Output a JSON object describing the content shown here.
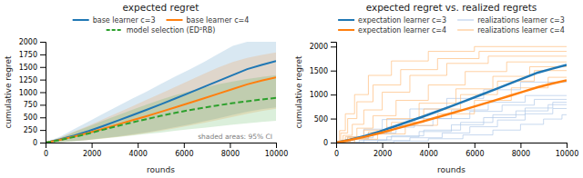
{
  "chart_data": [
    {
      "type": "line",
      "title": "expected regret",
      "x_label": "rounds",
      "y_label": "cumulative regret",
      "x": [
        0,
        625,
        1250,
        1875,
        2500,
        3125,
        3750,
        4375,
        5000,
        5625,
        6250,
        6875,
        7500,
        8125,
        8750,
        9375,
        10000
      ],
      "xlim": [
        0,
        10000
      ],
      "xticks": [
        0,
        2000,
        4000,
        6000,
        8000,
        10000
      ],
      "ylim": [
        0,
        2000
      ],
      "yticks": [
        0,
        250,
        500,
        750,
        1000,
        1250,
        1500,
        1750,
        2000
      ],
      "legend": "top",
      "annotation": "shaded areas: 95% CI",
      "series": [
        {
          "name": "base learner c=3",
          "color": "#1f77b4",
          "line_style": "solid",
          "values": [
            0,
            62,
            140,
            230,
            330,
            435,
            540,
            648,
            760,
            873,
            988,
            1105,
            1222,
            1340,
            1458,
            1540,
            1620
          ],
          "low": [
            0,
            10,
            28,
            55,
            88,
            122,
            162,
            204,
            252,
            305,
            362,
            422,
            484,
            548,
            612,
            660,
            700
          ],
          "high": [
            0,
            115,
            272,
            420,
            570,
            720,
            870,
            1010,
            1160,
            1310,
            1450,
            1600,
            1760,
            1920,
            2000,
            2000,
            2000
          ]
        },
        {
          "name": "base learner c=4",
          "color": "#ff7f0e",
          "line_style": "solid",
          "values": [
            0,
            55,
            120,
            195,
            276,
            358,
            440,
            524,
            610,
            698,
            788,
            878,
            970,
            1062,
            1155,
            1230,
            1295
          ],
          "low": [
            0,
            10,
            25,
            50,
            80,
            112,
            148,
            188,
            234,
            282,
            336,
            392,
            450,
            510,
            572,
            624,
            670
          ],
          "high": [
            0,
            98,
            220,
            340,
            465,
            592,
            718,
            845,
            975,
            1105,
            1235,
            1365,
            1490,
            1600,
            1680,
            1740,
            1790
          ]
        },
        {
          "name": "model selection (ED²RB)",
          "color": "#2ca02c",
          "line_style": "dashed",
          "values": [
            0,
            50,
            112,
            180,
            255,
            328,
            400,
            465,
            530,
            590,
            645,
            695,
            740,
            782,
            820,
            855,
            888
          ],
          "low": [
            0,
            10,
            28,
            52,
            80,
            108,
            140,
            170,
            200,
            232,
            264,
            295,
            325,
            355,
            382,
            408,
            432
          ],
          "high": [
            0,
            92,
            210,
            322,
            432,
            542,
            648,
            752,
            850,
            940,
            1020,
            1092,
            1156,
            1212,
            1260,
            1300,
            1336
          ]
        }
      ]
    },
    {
      "type": "line",
      "title": "expected regret vs. realized regrets",
      "x_label": "rounds",
      "y_label": "cumulative regret",
      "x": [
        0,
        625,
        1250,
        1875,
        2500,
        3125,
        3750,
        4375,
        5000,
        5625,
        6250,
        6875,
        7500,
        8125,
        8750,
        9375,
        10000
      ],
      "xlim": [
        0,
        10000
      ],
      "xticks": [
        0,
        2000,
        4000,
        6000,
        8000,
        10000
      ],
      "ylim": [
        0,
        2100
      ],
      "yticks": [
        0,
        500,
        1000,
        1500,
        2000
      ],
      "legend": "top",
      "series": [
        {
          "name": "expectation learner c=3",
          "color": "#1f77b4",
          "values": [
            0,
            62,
            140,
            230,
            330,
            435,
            540,
            648,
            760,
            873,
            988,
            1105,
            1222,
            1340,
            1458,
            1540,
            1620
          ]
        },
        {
          "name": "realizations learner c=3",
          "color": "#aec7e8",
          "x": [
            0,
            800,
            800,
            1600,
            1600,
            2600,
            2600,
            4200,
            4200,
            5800,
            5800,
            7200,
            7200,
            8600,
            8600,
            10000
          ],
          "values": [
            0,
            0,
            100,
            100,
            200,
            200,
            350,
            350,
            500,
            500,
            650,
            650,
            780,
            780,
            900,
            900
          ]
        },
        {
          "color": "#aec7e8",
          "x": [
            0,
            600,
            600,
            1400,
            1400,
            2200,
            2200,
            3400,
            3400,
            5000,
            5000,
            6600,
            6600,
            8200,
            8200,
            10000
          ],
          "values": [
            0,
            0,
            80,
            80,
            180,
            180,
            320,
            320,
            500,
            500,
            680,
            680,
            840,
            840,
            980,
            980
          ]
        },
        {
          "color": "#aec7e8",
          "x": [
            0,
            1200,
            1200,
            2400,
            2400,
            3800,
            3800,
            5400,
            5400,
            6800,
            6800,
            8200,
            8200,
            9400,
            9400,
            10000
          ],
          "values": [
            0,
            0,
            60,
            60,
            140,
            140,
            260,
            260,
            420,
            420,
            580,
            580,
            720,
            720,
            840,
            840
          ]
        },
        {
          "color": "#aec7e8",
          "x": [
            0,
            500,
            500,
            1200,
            1200,
            2000,
            2000,
            3200,
            3200,
            4800,
            4800,
            6400,
            6400,
            8000,
            8000,
            10000
          ],
          "values": [
            0,
            0,
            120,
            120,
            280,
            280,
            480,
            480,
            700,
            700,
            920,
            920,
            1100,
            1100,
            1260,
            1260
          ]
        },
        {
          "color": "#aec7e8",
          "x": [
            0,
            1000,
            1000,
            2200,
            2200,
            3600,
            3600,
            5000,
            5000,
            6400,
            6400,
            7800,
            7800,
            9200,
            9200,
            10000
          ],
          "values": [
            0,
            0,
            50,
            50,
            120,
            120,
            230,
            230,
            370,
            370,
            520,
            520,
            660,
            660,
            790,
            790
          ]
        },
        {
          "color": "#aec7e8",
          "x": [
            0,
            1800,
            1800,
            3200,
            3200,
            4600,
            4600,
            5800,
            5800,
            7000,
            7000,
            8200,
            8200,
            9400,
            9400,
            10000
          ],
          "values": [
            0,
            0,
            40,
            40,
            100,
            100,
            200,
            200,
            330,
            330,
            470,
            470,
            600,
            600,
            710,
            710
          ]
        },
        {
          "color": "#aec7e8",
          "x": [
            0,
            2500,
            2500,
            4000,
            4000,
            5500,
            5500,
            6800,
            6800,
            8000,
            8000,
            9000,
            9000,
            9800,
            9800,
            10000
          ],
          "values": [
            0,
            0,
            30,
            30,
            80,
            80,
            160,
            160,
            260,
            260,
            380,
            380,
            490,
            490,
            580,
            580
          ]
        },
        {
          "name": "expectation learner c=4",
          "color": "#ff7f0e",
          "values": [
            0,
            55,
            120,
            195,
            276,
            358,
            440,
            524,
            610,
            698,
            788,
            878,
            970,
            1062,
            1155,
            1230,
            1295
          ]
        },
        {
          "name": "realizations learner c=4",
          "color": "#ffbb78",
          "x": [
            0,
            300,
            300,
            700,
            700,
            1200,
            1200,
            2000,
            2000,
            3200,
            3200,
            4800,
            4800,
            6600,
            6600,
            10000
          ],
          "values": [
            0,
            0,
            150,
            150,
            380,
            380,
            680,
            680,
            1050,
            1050,
            1400,
            1400,
            1650,
            1650,
            1800,
            1800
          ]
        },
        {
          "color": "#ffbb78",
          "x": [
            0,
            200,
            200,
            500,
            500,
            900,
            900,
            1600,
            1600,
            2800,
            2800,
            4400,
            4400,
            6200,
            6200,
            10000
          ],
          "values": [
            0,
            0,
            200,
            200,
            500,
            500,
            850,
            850,
            1200,
            1200,
            1520,
            1520,
            1750,
            1750,
            1900,
            1900
          ]
        },
        {
          "color": "#ffbb78",
          "x": [
            0,
            400,
            400,
            900,
            900,
            1600,
            1600,
            2600,
            2600,
            4000,
            4000,
            5600,
            5600,
            7400,
            7400,
            10000
          ],
          "values": [
            0,
            0,
            120,
            120,
            300,
            300,
            560,
            560,
            880,
            880,
            1200,
            1200,
            1480,
            1480,
            1680,
            1680
          ]
        },
        {
          "color": "#ffbb78",
          "x": [
            0,
            600,
            600,
            1400,
            1400,
            2400,
            2400,
            3800,
            3800,
            5400,
            5400,
            7000,
            7000,
            8600,
            8600,
            10000
          ],
          "values": [
            0,
            0,
            90,
            90,
            220,
            220,
            420,
            420,
            700,
            700,
            1000,
            1000,
            1280,
            1280,
            1500,
            1500
          ]
        },
        {
          "color": "#ffbb78",
          "x": [
            0,
            150,
            150,
            400,
            400,
            800,
            800,
            1400,
            1400,
            2400,
            2400,
            4000,
            4000,
            6000,
            6000,
            10000
          ],
          "values": [
            0,
            0,
            250,
            250,
            600,
            600,
            1000,
            1000,
            1400,
            1400,
            1700,
            1700,
            1900,
            1900,
            2000,
            2000
          ]
        },
        {
          "color": "#ffbb78",
          "x": [
            0,
            500,
            500,
            1200,
            1200,
            2200,
            2200,
            3600,
            3600,
            5200,
            5200,
            6800,
            6800,
            8400,
            8400,
            10000
          ],
          "values": [
            0,
            0,
            100,
            100,
            260,
            260,
            500,
            500,
            820,
            820,
            1120,
            1120,
            1380,
            1380,
            1580,
            1580
          ]
        },
        {
          "color": "#ffbb78",
          "x": [
            0,
            800,
            800,
            1800,
            1800,
            3000,
            3000,
            4400,
            4400,
            6000,
            6000,
            7600,
            7600,
            9200,
            9200,
            10000
          ],
          "values": [
            0,
            0,
            70,
            70,
            180,
            180,
            360,
            360,
            600,
            600,
            880,
            880,
            1140,
            1140,
            1360,
            1360
          ]
        }
      ]
    }
  ]
}
